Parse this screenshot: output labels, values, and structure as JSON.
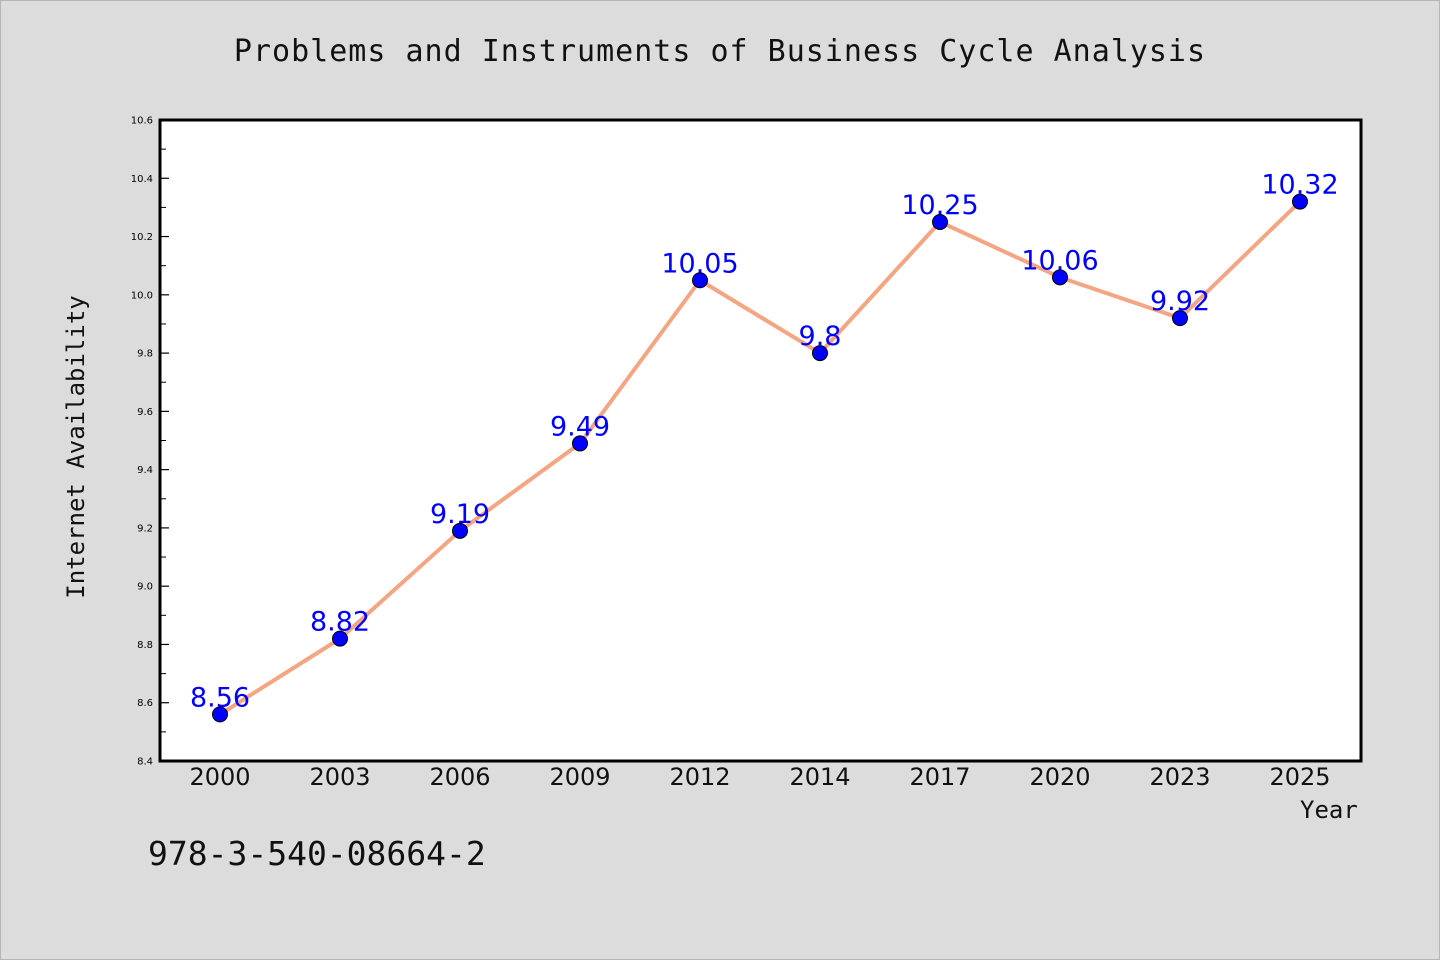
{
  "chart_data": {
    "type": "line",
    "title": "Problems and Instruments of Business Cycle Analysis",
    "xlabel": "Year",
    "ylabel": "Internet Availability",
    "categories": [
      "2000",
      "2003",
      "2006",
      "2009",
      "2012",
      "2014",
      "2017",
      "2020",
      "2023",
      "2025"
    ],
    "series": [
      {
        "values": [
          8.56,
          8.82,
          9.19,
          9.49,
          10.05,
          9.8,
          10.25,
          10.06,
          9.92,
          10.32
        ],
        "labels": [
          "8.56",
          "8.82",
          "9.19",
          "9.49",
          "10.05",
          "9.8",
          "10.25",
          "10.06",
          "9.92",
          "10.32"
        ],
        "line_color": "#f4a582",
        "marker_color": "#0000ff",
        "label_color": "#0000ff"
      }
    ],
    "ylim": [
      8.4,
      10.6
    ],
    "y_ticks": [
      "8.4",
      "8.6",
      "8.8",
      "9.0",
      "9.2",
      "9.4",
      "9.6",
      "9.8",
      "10.0",
      "10.2",
      "10.4",
      "10.6"
    ],
    "grid": false,
    "legend": "none"
  },
  "annotation": "978-3-540-08664-2",
  "colors": {
    "background": "#dcdcdc",
    "plot_area": "#ffffff",
    "axis": "#000000"
  }
}
